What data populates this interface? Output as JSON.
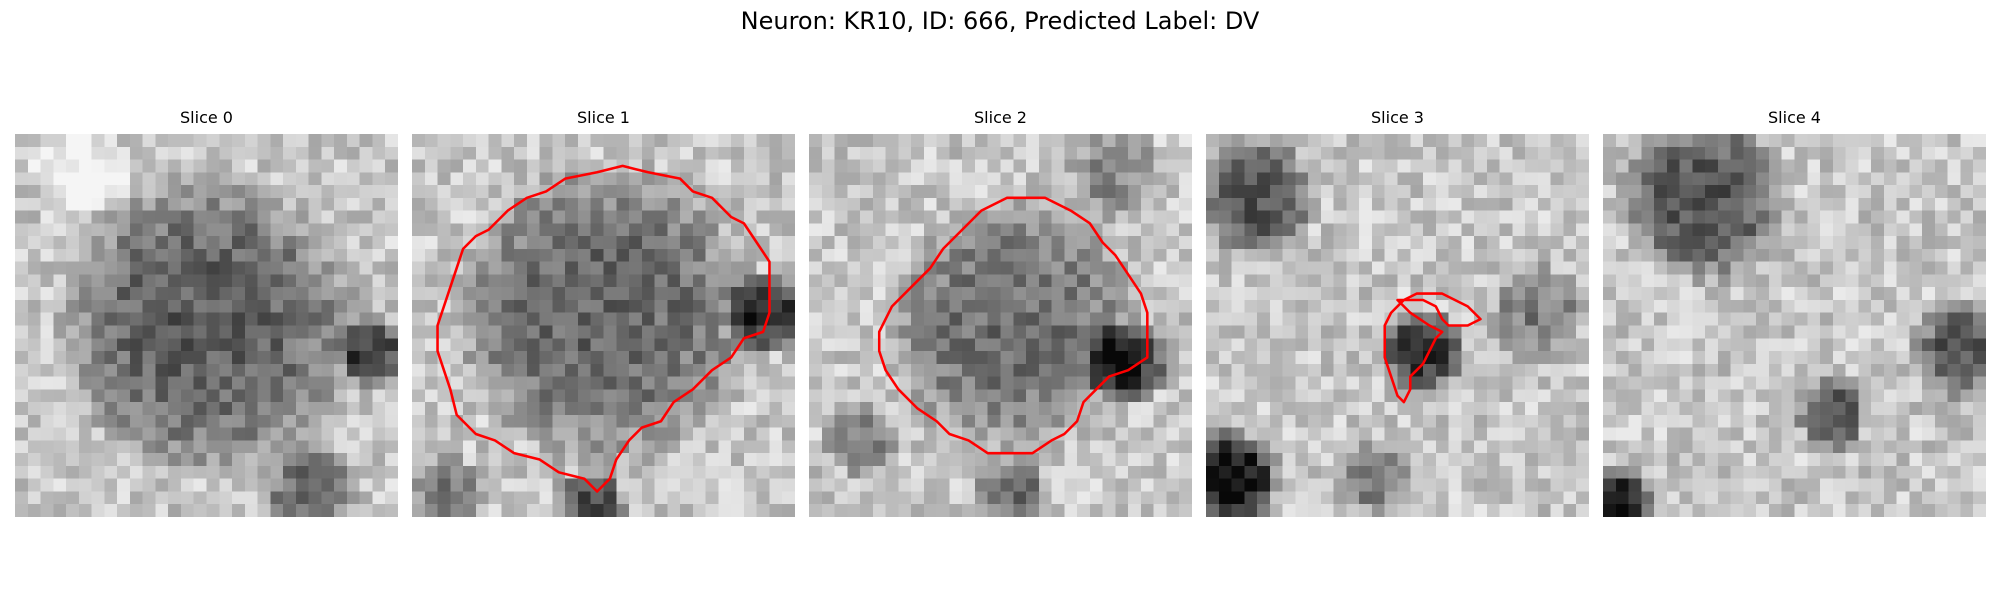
{
  "figure": {
    "title": "Neuron: KR10, ID: 666, Predicted Label: DV"
  },
  "panels": [
    {
      "title": "Slice 0",
      "seed": 11,
      "has_contour": false,
      "contour": []
    },
    {
      "title": "Slice 1",
      "seed": 23,
      "has_contour": true,
      "contour": [
        [
          18.5,
          3.0
        ],
        [
          21.0,
          3.5
        ],
        [
          22.0,
          4.5
        ],
        [
          23.5,
          5.0
        ],
        [
          25.0,
          6.5
        ],
        [
          26.0,
          7.0
        ],
        [
          27.0,
          8.5
        ],
        [
          28.0,
          10.0
        ],
        [
          28.0,
          12.0
        ],
        [
          28.0,
          14.0
        ],
        [
          27.5,
          15.5
        ],
        [
          26.0,
          16.0
        ],
        [
          25.0,
          17.5
        ],
        [
          23.5,
          18.5
        ],
        [
          22.0,
          20.0
        ],
        [
          20.5,
          21.0
        ],
        [
          19.5,
          22.5
        ],
        [
          18.0,
          23.0
        ],
        [
          17.0,
          24.0
        ],
        [
          16.0,
          25.5
        ],
        [
          15.5,
          27.0
        ],
        [
          14.5,
          28.0
        ],
        [
          13.5,
          27.0
        ],
        [
          11.5,
          26.5
        ],
        [
          10.0,
          25.5
        ],
        [
          8.0,
          25.0
        ],
        [
          6.5,
          24.0
        ],
        [
          5.0,
          23.5
        ],
        [
          3.5,
          22.0
        ],
        [
          3.0,
          20.0
        ],
        [
          2.5,
          18.5
        ],
        [
          2.0,
          17.0
        ],
        [
          2.0,
          15.0
        ],
        [
          2.5,
          13.5
        ],
        [
          3.0,
          12.0
        ],
        [
          3.5,
          10.5
        ],
        [
          4.0,
          9.0
        ],
        [
          5.0,
          8.0
        ],
        [
          6.0,
          7.5
        ],
        [
          7.5,
          6.0
        ],
        [
          9.0,
          5.0
        ],
        [
          10.5,
          4.5
        ],
        [
          12.0,
          3.5
        ],
        [
          14.5,
          3.0
        ],
        [
          16.5,
          2.5
        ]
      ]
    },
    {
      "title": "Slice 2",
      "seed": 37,
      "has_contour": true,
      "contour": [
        [
          15.5,
          5.0
        ],
        [
          18.5,
          5.0
        ],
        [
          20.5,
          6.0
        ],
        [
          22.0,
          7.0
        ],
        [
          23.0,
          8.5
        ],
        [
          24.0,
          9.5
        ],
        [
          25.0,
          11.0
        ],
        [
          26.0,
          12.5
        ],
        [
          26.5,
          14.0
        ],
        [
          26.5,
          16.0
        ],
        [
          26.5,
          17.5
        ],
        [
          25.0,
          18.5
        ],
        [
          23.5,
          19.0
        ],
        [
          22.5,
          20.0
        ],
        [
          21.5,
          21.0
        ],
        [
          21.0,
          22.5
        ],
        [
          20.0,
          23.5
        ],
        [
          19.0,
          24.0
        ],
        [
          17.5,
          25.0
        ],
        [
          15.5,
          25.0
        ],
        [
          14.0,
          25.0
        ],
        [
          12.5,
          24.0
        ],
        [
          11.0,
          23.5
        ],
        [
          10.0,
          22.5
        ],
        [
          8.5,
          21.5
        ],
        [
          7.0,
          20.0
        ],
        [
          6.0,
          18.5
        ],
        [
          5.5,
          17.0
        ],
        [
          5.5,
          15.5
        ],
        [
          6.5,
          13.5
        ],
        [
          8.0,
          12.0
        ],
        [
          9.5,
          10.5
        ],
        [
          10.5,
          9.0
        ],
        [
          12.0,
          7.5
        ],
        [
          13.5,
          6.0
        ]
      ]
    },
    {
      "title": "Slice 3",
      "seed": 53,
      "has_contour": true,
      "contour": [
        [
          15.0,
          13.0
        ],
        [
          17.0,
          13.0
        ],
        [
          18.0,
          13.5
        ],
        [
          18.5,
          14.5
        ],
        [
          19.0,
          15.0
        ],
        [
          20.5,
          15.0
        ],
        [
          21.5,
          14.5
        ],
        [
          21.0,
          14.0
        ],
        [
          20.5,
          13.5
        ],
        [
          19.5,
          13.0
        ],
        [
          18.5,
          12.5
        ],
        [
          16.5,
          12.5
        ],
        [
          15.5,
          13.0
        ],
        [
          14.5,
          14.0
        ],
        [
          14.0,
          15.0
        ],
        [
          14.0,
          16.5
        ],
        [
          14.0,
          17.5
        ],
        [
          14.5,
          19.0
        ],
        [
          15.0,
          20.5
        ],
        [
          15.5,
          21.0
        ],
        [
          16.0,
          20.0
        ],
        [
          16.0,
          19.0
        ],
        [
          17.0,
          18.0
        ],
        [
          17.5,
          17.0
        ],
        [
          18.0,
          16.0
        ],
        [
          18.5,
          15.5
        ],
        [
          17.5,
          15.0
        ],
        [
          16.0,
          14.0
        ]
      ]
    },
    {
      "title": "Slice 4",
      "seed": 71,
      "has_contour": false,
      "contour": []
    }
  ],
  "colors": {
    "contour": "#ff0000",
    "background": "#ffffff",
    "text": "#000000"
  }
}
